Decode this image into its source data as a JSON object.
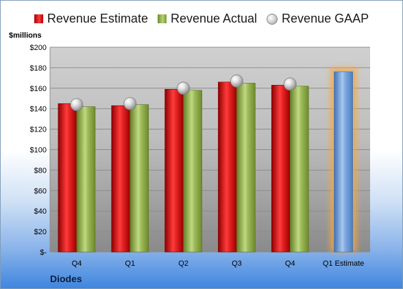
{
  "legend": {
    "estimate": "Revenue Estimate",
    "actual": "Revenue Actual",
    "gaap": "Revenue GAAP"
  },
  "unit_label": "$millions",
  "company": "Diodes",
  "colors": {
    "estimate": "#d81e1e",
    "actual": "#93b152",
    "gaap": "#c8c8c8",
    "forecast": "#6a9ed8",
    "forecast_glow": "#f5a742"
  },
  "chart_data": {
    "type": "bar",
    "categories": [
      "Q4",
      "Q1",
      "Q2",
      "Q3",
      "Q4",
      "Q1 Estimate"
    ],
    "series": [
      {
        "name": "Revenue Estimate",
        "values": [
          145,
          143,
          159,
          166,
          163,
          null
        ]
      },
      {
        "name": "Revenue Actual",
        "values": [
          142,
          144,
          158,
          165,
          162,
          176
        ]
      },
      {
        "name": "Revenue GAAP",
        "type": "scatter",
        "values": [
          144,
          145,
          160,
          167,
          164,
          null
        ]
      }
    ],
    "ylim": [
      0,
      200
    ],
    "yticks": [
      0,
      20,
      40,
      60,
      80,
      100,
      120,
      140,
      160,
      180,
      200
    ],
    "ytick_labels": [
      "$-",
      "$20",
      "$40",
      "$60",
      "$80",
      "$100",
      "$120",
      "$140",
      "$160",
      "$180",
      "$200"
    ],
    "ylabel": "$millions",
    "xlabel": "",
    "grid": true,
    "legend_position": "top"
  }
}
